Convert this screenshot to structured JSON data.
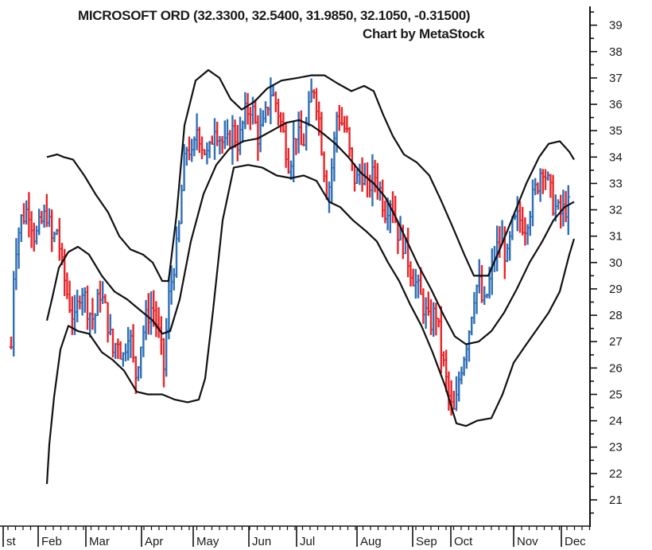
{
  "chart_data": {
    "type": "ohlc",
    "title": "MICROSOFT ORD (32.3300, 32.5400, 31.9850, 32.1050, -0.31500)",
    "subtitle": "Chart by MetaStock",
    "ylim": [
      20.5,
      39.5
    ],
    "y_ticks": [
      21,
      22,
      23,
      24,
      25,
      26,
      27,
      28,
      29,
      30,
      31,
      32,
      33,
      34,
      35,
      36,
      37,
      38,
      39
    ],
    "x_ticks": [
      "st",
      "Feb",
      "Mar",
      "Apr",
      "May",
      "Jun",
      "Jul",
      "Aug",
      "Sep",
      "Oct",
      "Nov",
      "Dec"
    ],
    "grid": false,
    "up_color": "#2e6fb8",
    "down_color": "#e8262a",
    "band_color": "#111111",
    "price_points": [
      [
        0,
        26.8
      ],
      [
        4,
        30.3
      ],
      [
        12,
        31.6
      ],
      [
        22,
        32.1
      ],
      [
        30,
        30.9
      ],
      [
        38,
        31.5
      ],
      [
        45,
        31.9
      ],
      [
        52,
        30.7
      ],
      [
        58,
        31.3
      ],
      [
        64,
        29.8
      ],
      [
        72,
        28.6
      ],
      [
        80,
        27.7
      ],
      [
        88,
        29.2
      ],
      [
        96,
        28.3
      ],
      [
        104,
        27.8
      ],
      [
        112,
        28.9
      ],
      [
        120,
        28.0
      ],
      [
        128,
        26.6
      ],
      [
        134,
        27.2
      ],
      [
        140,
        26.3
      ],
      [
        148,
        27.6
      ],
      [
        156,
        25.6
      ],
      [
        162,
        26.8
      ],
      [
        170,
        27.9
      ],
      [
        178,
        28.4
      ],
      [
        186,
        27.2
      ],
      [
        192,
        26.0
      ],
      [
        198,
        28.6
      ],
      [
        204,
        29.8
      ],
      [
        210,
        30.8
      ],
      [
        216,
        33.4
      ],
      [
        222,
        34.6
      ],
      [
        228,
        33.8
      ],
      [
        234,
        35.2
      ],
      [
        240,
        34.5
      ],
      [
        248,
        33.9
      ],
      [
        256,
        35.3
      ],
      [
        262,
        34.8
      ],
      [
        270,
        34.3
      ],
      [
        278,
        35.0
      ],
      [
        286,
        34.5
      ],
      [
        294,
        35.6
      ],
      [
        302,
        36.0
      ],
      [
        310,
        34.8
      ],
      [
        318,
        35.2
      ],
      [
        326,
        36.5
      ],
      [
        334,
        36.0
      ],
      [
        342,
        34.9
      ],
      [
        350,
        33.7
      ],
      [
        358,
        35.0
      ],
      [
        366,
        34.3
      ],
      [
        374,
        35.6
      ],
      [
        380,
        36.8
      ],
      [
        386,
        35.8
      ],
      [
        392,
        34.0
      ],
      [
        398,
        32.5
      ],
      [
        404,
        33.8
      ],
      [
        410,
        35.7
      ],
      [
        416,
        35.3
      ],
      [
        422,
        34.9
      ],
      [
        428,
        33.6
      ],
      [
        434,
        33.0
      ],
      [
        440,
        33.6
      ],
      [
        448,
        32.7
      ],
      [
        456,
        33.4
      ],
      [
        462,
        33.0
      ],
      [
        470,
        32.0
      ],
      [
        478,
        32.5
      ],
      [
        486,
        31.2
      ],
      [
        494,
        30.7
      ],
      [
        502,
        29.8
      ],
      [
        510,
        29.1
      ],
      [
        518,
        28.4
      ],
      [
        526,
        27.6
      ],
      [
        534,
        28.2
      ],
      [
        540,
        26.8
      ],
      [
        546,
        25.7
      ],
      [
        552,
        24.6
      ],
      [
        558,
        24.2
      ],
      [
        564,
        25.8
      ],
      [
        570,
        26.6
      ],
      [
        576,
        27.5
      ],
      [
        582,
        28.8
      ],
      [
        588,
        29.3
      ],
      [
        594,
        28.2
      ],
      [
        600,
        29.0
      ],
      [
        608,
        30.3
      ],
      [
        616,
        30.9
      ],
      [
        624,
        30.1
      ],
      [
        630,
        31.3
      ],
      [
        638,
        31.7
      ],
      [
        646,
        31.4
      ],
      [
        654,
        32.2
      ],
      [
        662,
        33.0
      ],
      [
        668,
        33.8
      ],
      [
        674,
        33.1
      ],
      [
        682,
        32.2
      ],
      [
        690,
        31.8
      ],
      [
        698,
        32.1
      ],
      [
        704,
        32.1
      ]
    ],
    "upper_band": [
      [
        45,
        34.0
      ],
      [
        58,
        34.1
      ],
      [
        66,
        34.0
      ],
      [
        78,
        33.9
      ],
      [
        92,
        33.3
      ],
      [
        106,
        32.6
      ],
      [
        122,
        31.9
      ],
      [
        136,
        31.0
      ],
      [
        150,
        30.5
      ],
      [
        166,
        30.3
      ],
      [
        178,
        30.0
      ],
      [
        190,
        29.3
      ],
      [
        198,
        29.3
      ],
      [
        208,
        31.8
      ],
      [
        218,
        35.2
      ],
      [
        232,
        36.9
      ],
      [
        248,
        37.3
      ],
      [
        262,
        37.0
      ],
      [
        276,
        36.2
      ],
      [
        290,
        35.8
      ],
      [
        306,
        36.1
      ],
      [
        322,
        36.6
      ],
      [
        340,
        36.9
      ],
      [
        360,
        37.0
      ],
      [
        378,
        37.1
      ],
      [
        394,
        37.1
      ],
      [
        410,
        36.8
      ],
      [
        428,
        36.5
      ],
      [
        444,
        36.7
      ],
      [
        456,
        36.5
      ],
      [
        468,
        35.6
      ],
      [
        480,
        34.8
      ],
      [
        494,
        34.1
      ],
      [
        510,
        33.8
      ],
      [
        526,
        33.3
      ],
      [
        540,
        32.4
      ],
      [
        556,
        31.3
      ],
      [
        570,
        30.3
      ],
      [
        582,
        29.5
      ],
      [
        600,
        29.5
      ],
      [
        616,
        30.6
      ],
      [
        632,
        31.8
      ],
      [
        648,
        33.0
      ],
      [
        664,
        34.0
      ],
      [
        676,
        34.5
      ],
      [
        690,
        34.6
      ],
      [
        702,
        34.2
      ],
      [
        708,
        33.9
      ]
    ],
    "middle_band": [
      [
        45,
        27.8
      ],
      [
        52,
        28.7
      ],
      [
        60,
        29.8
      ],
      [
        72,
        30.4
      ],
      [
        84,
        30.6
      ],
      [
        98,
        30.3
      ],
      [
        114,
        29.5
      ],
      [
        130,
        28.9
      ],
      [
        146,
        28.6
      ],
      [
        162,
        28.2
      ],
      [
        178,
        27.8
      ],
      [
        190,
        27.3
      ],
      [
        200,
        27.4
      ],
      [
        212,
        28.6
      ],
      [
        226,
        30.8
      ],
      [
        242,
        32.6
      ],
      [
        258,
        33.7
      ],
      [
        274,
        34.3
      ],
      [
        292,
        34.6
      ],
      [
        310,
        34.7
      ],
      [
        328,
        35.0
      ],
      [
        346,
        35.3
      ],
      [
        362,
        35.4
      ],
      [
        378,
        35.2
      ],
      [
        392,
        34.9
      ],
      [
        408,
        34.5
      ],
      [
        424,
        34.0
      ],
      [
        440,
        33.4
      ],
      [
        456,
        33.0
      ],
      [
        470,
        32.5
      ],
      [
        484,
        31.7
      ],
      [
        498,
        30.8
      ],
      [
        512,
        29.9
      ],
      [
        528,
        29.0
      ],
      [
        544,
        28.0
      ],
      [
        558,
        27.2
      ],
      [
        572,
        26.9
      ],
      [
        588,
        27.0
      ],
      [
        604,
        27.4
      ],
      [
        620,
        28.1
      ],
      [
        636,
        29.0
      ],
      [
        652,
        30.0
      ],
      [
        668,
        30.8
      ],
      [
        682,
        31.6
      ],
      [
        696,
        32.1
      ],
      [
        708,
        32.3
      ]
    ],
    "lower_band": [
      [
        45,
        21.6
      ],
      [
        48,
        23.1
      ],
      [
        54,
        24.9
      ],
      [
        62,
        26.7
      ],
      [
        72,
        27.6
      ],
      [
        84,
        27.4
      ],
      [
        98,
        27.3
      ],
      [
        114,
        26.6
      ],
      [
        128,
        26.3
      ],
      [
        142,
        25.9
      ],
      [
        158,
        25.1
      ],
      [
        172,
        25.0
      ],
      [
        190,
        25.0
      ],
      [
        206,
        24.8
      ],
      [
        222,
        24.7
      ],
      [
        236,
        24.8
      ],
      [
        244,
        25.6
      ],
      [
        254,
        28.2
      ],
      [
        266,
        31.6
      ],
      [
        280,
        33.6
      ],
      [
        298,
        33.7
      ],
      [
        316,
        33.6
      ],
      [
        334,
        33.3
      ],
      [
        352,
        33.2
      ],
      [
        368,
        33.3
      ],
      [
        384,
        33.1
      ],
      [
        400,
        32.3
      ],
      [
        414,
        32.1
      ],
      [
        430,
        31.6
      ],
      [
        446,
        31.2
      ],
      [
        460,
        30.8
      ],
      [
        474,
        30.0
      ],
      [
        488,
        29.3
      ],
      [
        502,
        28.4
      ],
      [
        516,
        27.6
      ],
      [
        530,
        26.6
      ],
      [
        546,
        25.3
      ],
      [
        560,
        23.9
      ],
      [
        572,
        23.8
      ],
      [
        586,
        24.0
      ],
      [
        604,
        24.1
      ],
      [
        618,
        25.0
      ],
      [
        632,
        26.2
      ],
      [
        648,
        26.9
      ],
      [
        662,
        27.5
      ],
      [
        676,
        28.1
      ],
      [
        690,
        28.9
      ],
      [
        702,
        30.3
      ],
      [
        708,
        30.9
      ]
    ]
  }
}
